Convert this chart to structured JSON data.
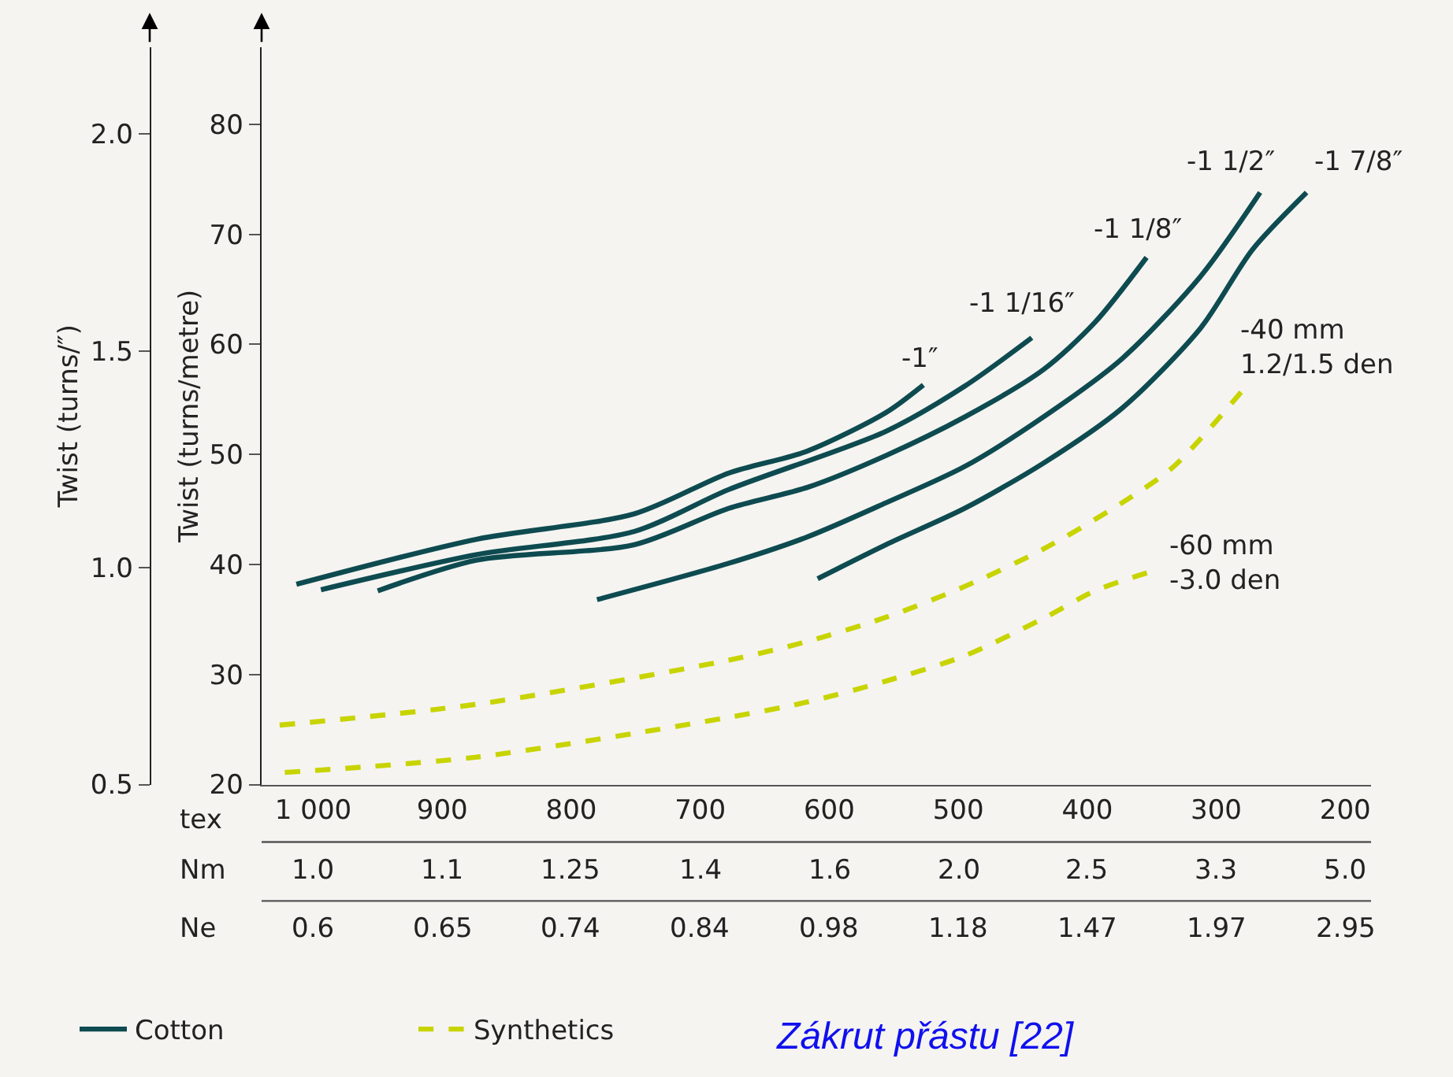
{
  "chart_data": {
    "type": "line",
    "xlabel": "tex",
    "ylabel": "Twist (turns/metre)",
    "y2label": "Twist (turns/″)",
    "xlim": [
      1040,
      180
    ],
    "xticks": [
      {
        "value": 1000,
        "label": "1 000"
      },
      900,
      800,
      700,
      600,
      500,
      400,
      300,
      200
    ],
    "ylim": [
      20,
      87
    ],
    "yticks": [
      20,
      30,
      40,
      50,
      60,
      70,
      80
    ],
    "y2lim": [
      0.5,
      2.2
    ],
    "y2ticks": [
      {
        "value": 0.5,
        "label": "0.5"
      },
      {
        "value": 1,
        "label": "1.0"
      },
      {
        "value": 1.5,
        "label": "1.5"
      },
      {
        "value": 2,
        "label": "2.0"
      }
    ],
    "grid": false,
    "legend": "bottom left",
    "marker": "none",
    "series": [
      {
        "name": "Cotton",
        "color": "#0e4b50",
        "line_style": "solid",
        "x": [
          1013,
          873,
          751,
          678,
          617,
          556,
          527
        ],
        "values": [
          38.2,
          42.3,
          44.6,
          48.3,
          50.3,
          53.8,
          56.3
        ]
      },
      {
        "color": "#0e4b50",
        "line_style": "solid",
        "x": [
          994,
          873,
          751,
          678,
          556,
          495,
          443
        ],
        "values": [
          37.7,
          40.9,
          43.0,
          46.8,
          52.1,
          56.2,
          60.6
        ]
      },
      {
        "color": "#0e4b50",
        "line_style": "solid",
        "x": [
          950,
          873,
          751,
          678,
          617,
          556,
          495,
          434,
          394,
          354
        ],
        "values": [
          37.6,
          40.4,
          41.8,
          45.1,
          47.0,
          49.9,
          53.4,
          57.7,
          62.0,
          67.9
        ]
      },
      {
        "color": "#0e4b50",
        "line_style": "solid",
        "x": [
          780,
          678,
          617,
          556,
          495,
          434,
          373,
          312,
          266
        ],
        "values": [
          36.8,
          40.1,
          42.5,
          45.6,
          48.9,
          53.4,
          58.7,
          66.2,
          73.8
        ]
      },
      {
        "color": "#0e4b50",
        "line_style": "solid",
        "x": [
          609,
          556,
          495,
          434,
          373,
          312,
          272,
          230
        ],
        "values": [
          38.7,
          41.8,
          45.1,
          49.2,
          54.2,
          61.5,
          68.6,
          73.8
        ]
      },
      {
        "name": "Synthetics",
        "color": "#c8d400",
        "line_style": "dashed",
        "x": [
          1026,
          873,
          678,
          617,
          556,
          495,
          434,
          373,
          333,
          279
        ],
        "values": [
          25.4,
          27.3,
          31.3,
          33.0,
          35.2,
          38.0,
          41.4,
          45.6,
          48.9,
          55.9
        ]
      },
      {
        "color": "#c8d400",
        "line_style": "dashed",
        "x": [
          1022,
          873,
          678,
          617,
          556,
          495,
          434,
          394,
          352
        ],
        "values": [
          21.1,
          22.5,
          26.1,
          27.5,
          29.4,
          31.7,
          35.1,
          37.6,
          39.3
        ]
      }
    ],
    "annotations": [
      "-1″",
      "-1 1/16″",
      "-1 1/8″",
      "-1 1/2″",
      "-1 7/8″",
      "-40 mm\n1.2/1.5 den",
      "-60 mm\n-3.0 den",
      "Nm",
      "1.0",
      "1.1",
      "1.25",
      "1.4",
      "1.6",
      "2.0",
      "2.5",
      "3.3",
      "5.0",
      "Ne",
      "0.6",
      "0.65",
      "0.74",
      "0.84",
      "0.98",
      "1.18",
      "1.47",
      "1.97",
      "2.95",
      "Zákrut přástu [22]"
    ]
  }
}
